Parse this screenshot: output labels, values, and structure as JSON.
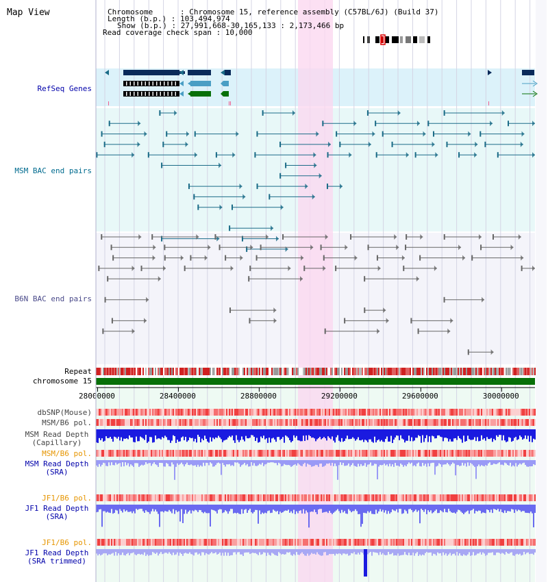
{
  "title": "Map View",
  "info": {
    "chromosome": "Chromosome      : Chromosome 15, reference assembly (C57BL/6J) (Build 37)",
    "length": "Length (b.p.) : 103,494,974",
    "show": "Show (b.p.) : 27,991,668-30,165,133 : 2,173,466 bp",
    "span": "Read coverage check span : 10,000"
  },
  "tracks": {
    "refseq": "RefSeq Genes",
    "msm_bac": "MSM BAC end pairs",
    "b6n_bac": "B6N BAC end pairs",
    "repeat": "Repeat",
    "chrom": "chromosome 15",
    "dbsnp": "dbSNP(Mouse)",
    "msm_pol": "MSM/B6 pol.",
    "msm_depth_cap": "MSM Read Depth\n(Capillary)",
    "msm_pol2": "MSM/B6 pol.",
    "msm_depth_sra": "MSM Read Depth\n(SRA)",
    "jf1_pol": "JF1/B6 pol.",
    "jf1_depth_sra": "JF1 Read Depth\n(SRA)",
    "jf1_pol2": "JF1/B6 pol.",
    "jf1_depth_trim": "JF1 Read Depth\n(SRA trimmed)"
  },
  "axis_ticks": [
    "28000000",
    "28400000",
    "28800000",
    "29200000",
    "29600000",
    "30000000"
  ],
  "axis_tick_values": [
    28000000,
    28400000,
    28800000,
    29200000,
    29600000,
    30000000
  ],
  "view": {
    "start": 27991668,
    "end": 30165133
  },
  "colors": {
    "refseq_bg": "#dcf2fa",
    "msm_bg": "#e8f8f8",
    "b6n_bg": "#f4f4fa",
    "highlight": "#fbd7f0",
    "dark_blue": "#0a2a5a",
    "mid_blue": "#4a9ec4",
    "green": "#087008",
    "teal": "#1a6b87",
    "gray": "#666666",
    "orange_label": "#e69500",
    "blue_label": "#0000aa",
    "teal_label": "#006b8f"
  }
}
